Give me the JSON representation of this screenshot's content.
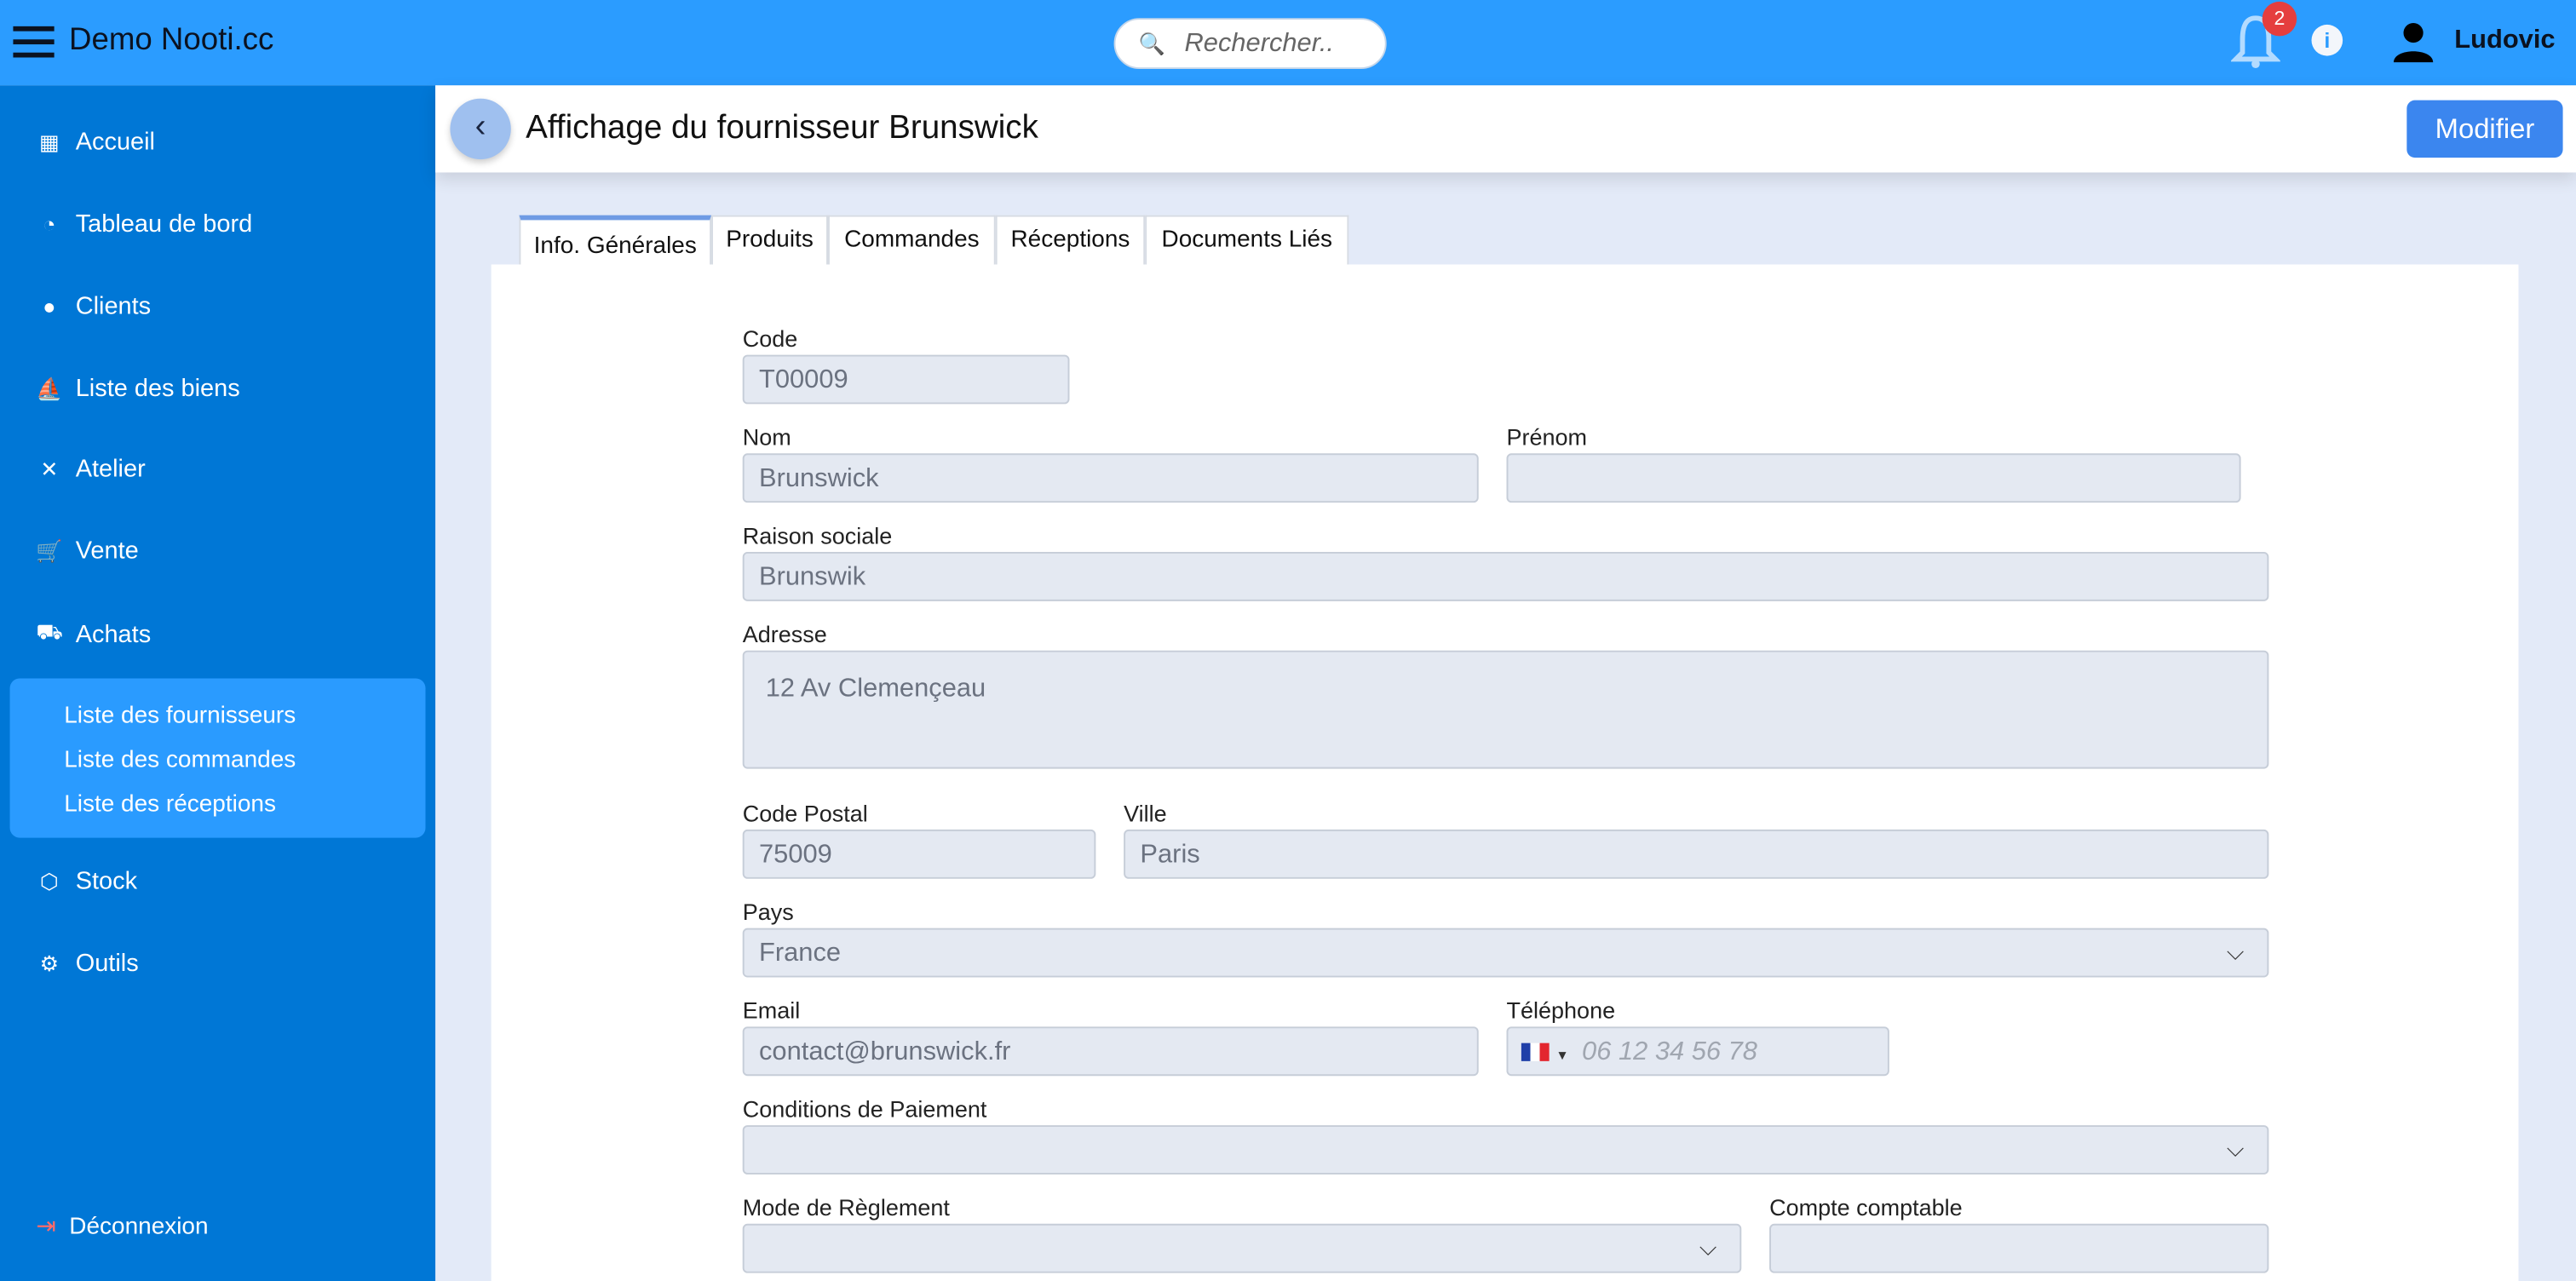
{
  "header": {
    "brand": "Demo Nooti.cc",
    "search_placeholder": "Rechercher..",
    "notifications": "2",
    "user": "Ludovic"
  },
  "sidebar": {
    "items": [
      {
        "label": "Accueil",
        "icon": "grid-icon"
      },
      {
        "label": "Tableau de bord",
        "icon": "gauge-icon"
      },
      {
        "label": "Clients",
        "icon": "person-icon"
      },
      {
        "label": "Liste des biens",
        "icon": "sailboat-icon"
      },
      {
        "label": "Atelier",
        "icon": "tools-icon"
      },
      {
        "label": "Vente",
        "icon": "cart-icon"
      },
      {
        "label": "Achats",
        "icon": "truck-icon"
      },
      {
        "label": "Stock",
        "icon": "box-icon"
      },
      {
        "label": "Outils",
        "icon": "gears-icon"
      }
    ],
    "achats_sub": [
      "Liste des fournisseurs",
      "Liste des commandes",
      "Liste des réceptions"
    ],
    "logout": "Déconnexion"
  },
  "page": {
    "title": "Affichage du fournisseur Brunswick",
    "modify": "Modifier"
  },
  "tabs": [
    "Info. Générales",
    "Produits",
    "Commandes",
    "Réceptions",
    "Documents Liés"
  ],
  "form": {
    "code": {
      "label": "Code",
      "value": "T00009"
    },
    "nom": {
      "label": "Nom",
      "value": "Brunswick"
    },
    "prenom": {
      "label": "Prénom",
      "value": ""
    },
    "raison": {
      "label": "Raison sociale",
      "value": "Brunswik"
    },
    "adresse": {
      "label": "Adresse",
      "value": "12 Av Clemençeau"
    },
    "cp": {
      "label": "Code Postal",
      "value": "75009"
    },
    "ville": {
      "label": "Ville",
      "value": "Paris"
    },
    "pays": {
      "label": "Pays",
      "value": "France"
    },
    "email": {
      "label": "Email",
      "value": "contact@brunswick.fr"
    },
    "tel": {
      "label": "Téléphone",
      "placeholder": "06 12 34 56 78"
    },
    "conditions": {
      "label": "Conditions de Paiement",
      "value": ""
    },
    "mode": {
      "label": "Mode de Règlement",
      "value": ""
    },
    "compte": {
      "label": "Compte comptable",
      "value": ""
    }
  }
}
